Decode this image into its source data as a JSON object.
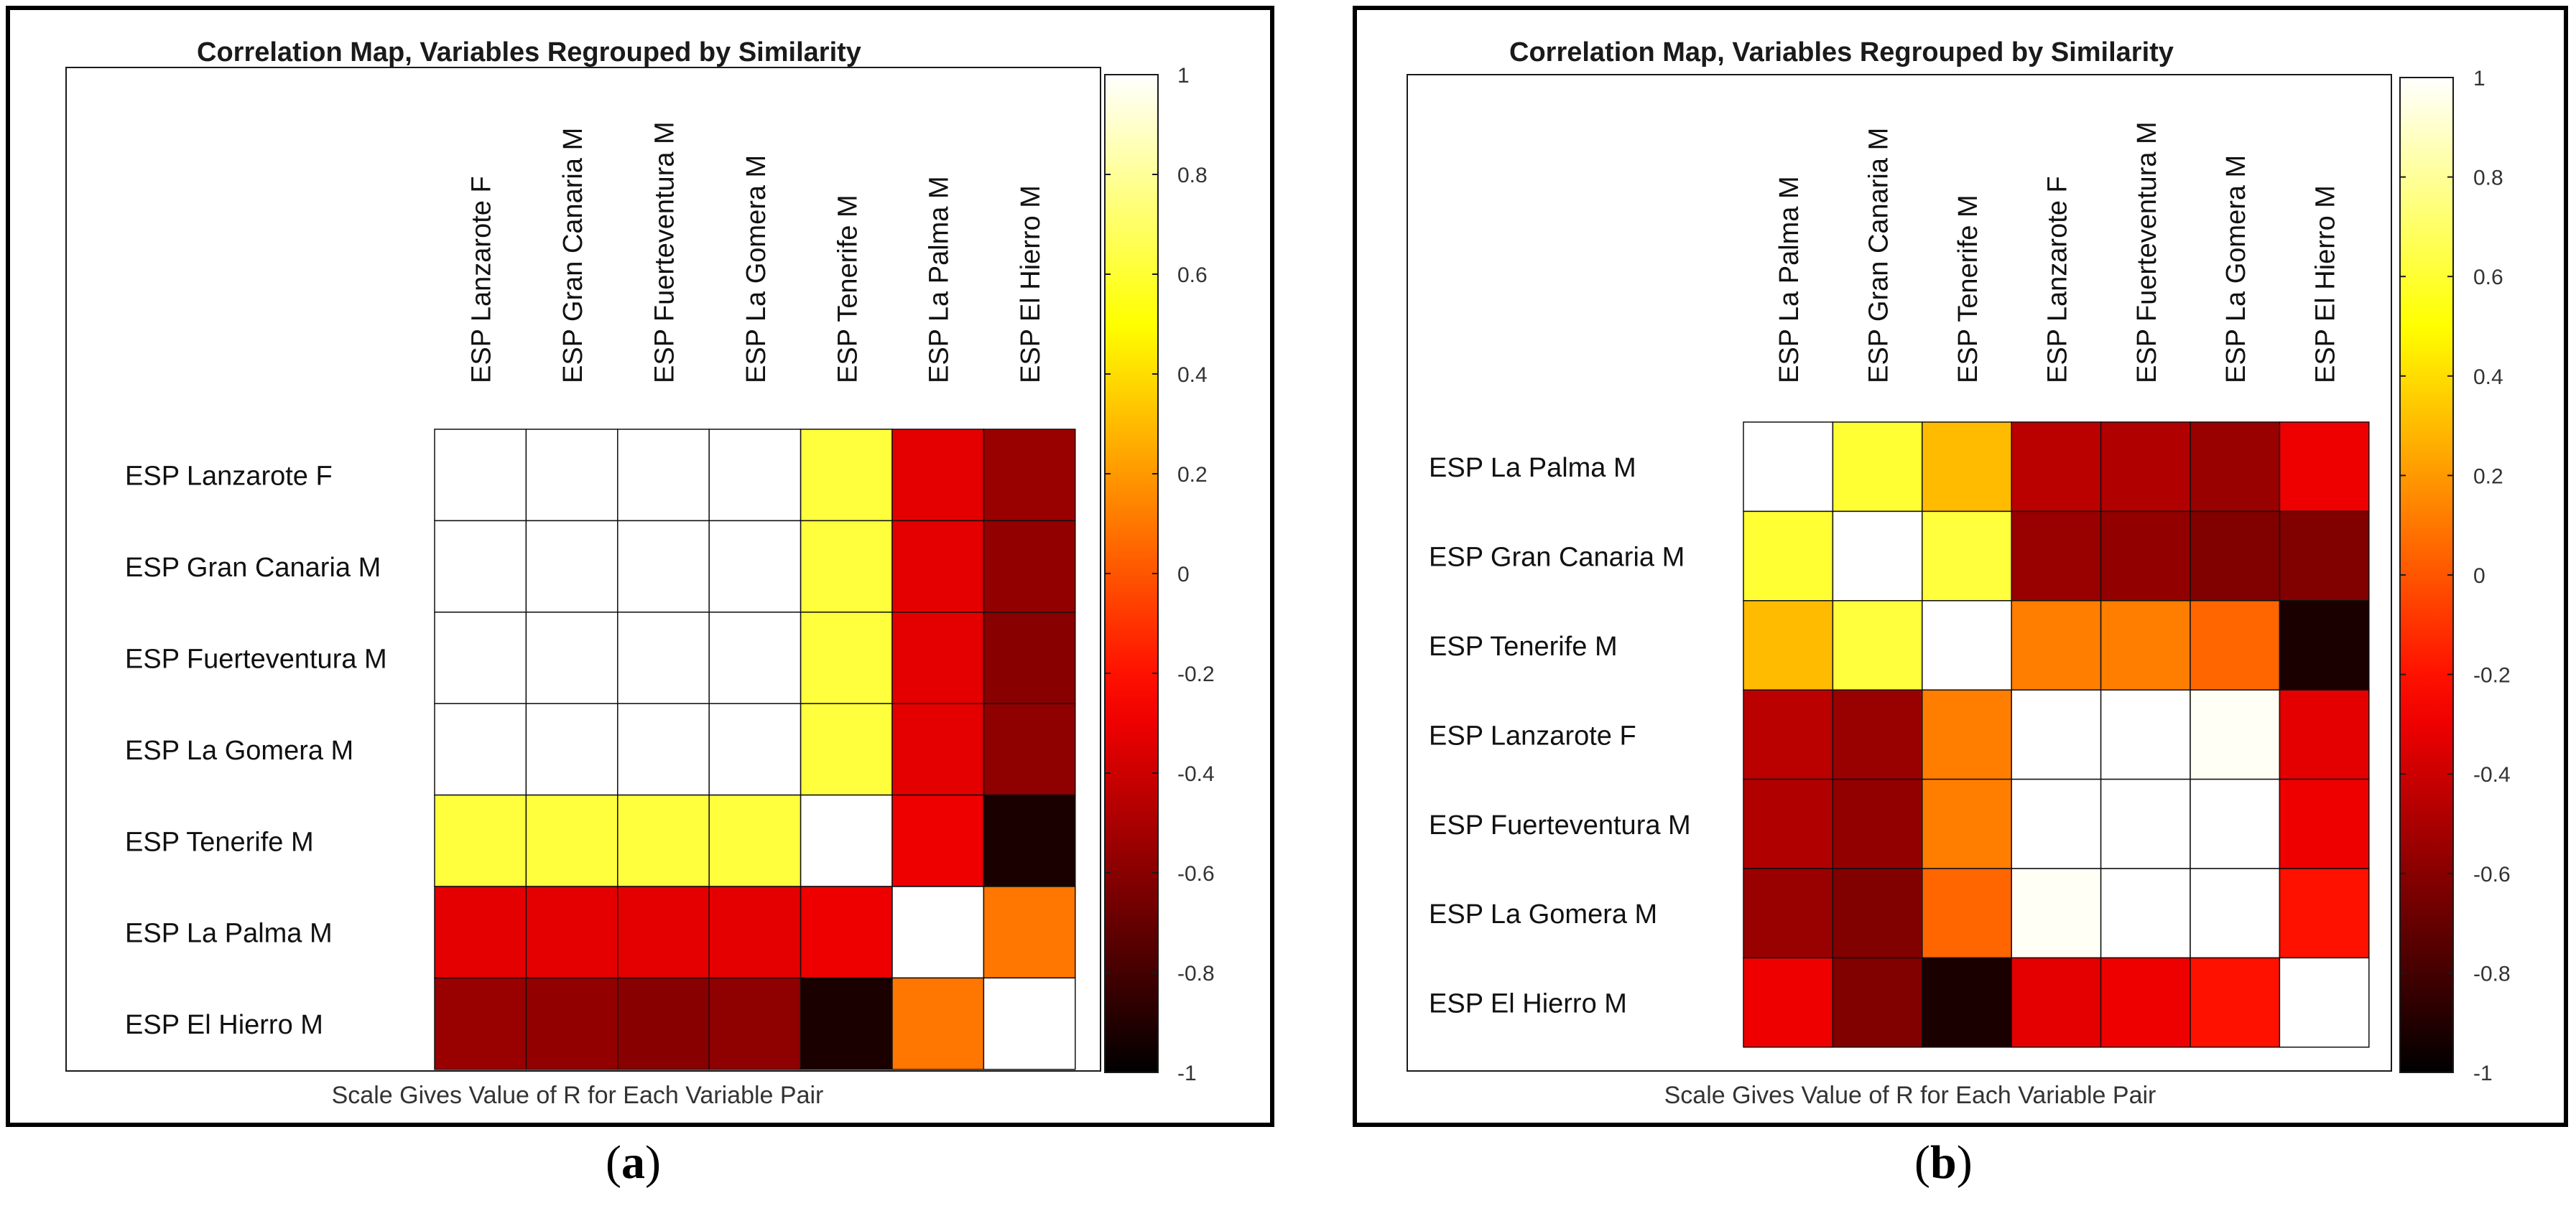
{
  "chart_data": [
    {
      "type": "heatmap",
      "panel_label": "(a)",
      "panel_letter": "a",
      "title": "Correlation Map, Variables Regrouped by Similarity",
      "xlabel": "Scale Gives Value of R for Each Variable Pair",
      "labels": [
        "ESP Lanzarote F",
        "ESP Gran Canaria M",
        "ESP Fuerteventura M",
        "ESP La Gomera M",
        "ESP Tenerife M",
        "ESP La Palma M",
        "ESP El Hierro M"
      ],
      "matrix": [
        [
          1.0,
          1.0,
          1.0,
          1.0,
          0.62,
          -0.33,
          -0.55
        ],
        [
          1.0,
          1.0,
          1.0,
          1.0,
          0.62,
          -0.33,
          -0.57
        ],
        [
          1.0,
          1.0,
          1.0,
          1.0,
          0.62,
          -0.33,
          -0.6
        ],
        [
          1.0,
          1.0,
          1.0,
          1.0,
          0.62,
          -0.33,
          -0.58
        ],
        [
          0.62,
          0.62,
          0.62,
          0.62,
          1.0,
          -0.3,
          -0.92
        ],
        [
          -0.33,
          -0.33,
          -0.33,
          -0.33,
          -0.3,
          1.0,
          0.1
        ],
        [
          -0.55,
          -0.57,
          -0.6,
          -0.58,
          -0.92,
          0.1,
          1.0
        ]
      ],
      "colorbar": {
        "min": -1,
        "max": 1,
        "ticks": [
          "1",
          "0.8",
          "0.6",
          "0.4",
          "0.2",
          "0",
          "-0.2",
          "-0.4",
          "-0.6",
          "-0.8",
          "-1"
        ]
      }
    },
    {
      "type": "heatmap",
      "panel_label": "(b)",
      "panel_letter": "b",
      "title": "Correlation Map, Variables Regrouped by Similarity",
      "xlabel": "Scale Gives Value of R for Each Variable Pair",
      "labels": [
        "ESP La Palma M",
        "ESP Gran Canaria M",
        "ESP Tenerife M",
        "ESP Lanzarote F",
        "ESP Fuerteventura M",
        "ESP La Gomera M",
        "ESP El Hierro M"
      ],
      "matrix": [
        [
          1.0,
          0.6,
          0.3,
          -0.45,
          -0.48,
          -0.55,
          -0.3
        ],
        [
          0.6,
          1.0,
          0.62,
          -0.55,
          -0.57,
          -0.62,
          -0.62
        ],
        [
          0.3,
          0.62,
          1.0,
          0.12,
          0.12,
          0.05,
          -0.92
        ],
        [
          -0.45,
          -0.55,
          0.12,
          1.0,
          1.0,
          0.98,
          -0.33
        ],
        [
          -0.48,
          -0.57,
          0.12,
          1.0,
          1.0,
          1.0,
          -0.3
        ],
        [
          -0.55,
          -0.62,
          0.05,
          0.98,
          1.0,
          1.0,
          -0.2
        ],
        [
          -0.3,
          -0.62,
          -0.92,
          -0.33,
          -0.3,
          -0.2,
          1.0
        ]
      ],
      "colorbar": {
        "min": -1,
        "max": 1,
        "ticks": [
          "1",
          "0.8",
          "0.6",
          "0.4",
          "0.2",
          "0",
          "-0.2",
          "-0.4",
          "-0.6",
          "-0.8",
          "-1"
        ]
      }
    }
  ]
}
